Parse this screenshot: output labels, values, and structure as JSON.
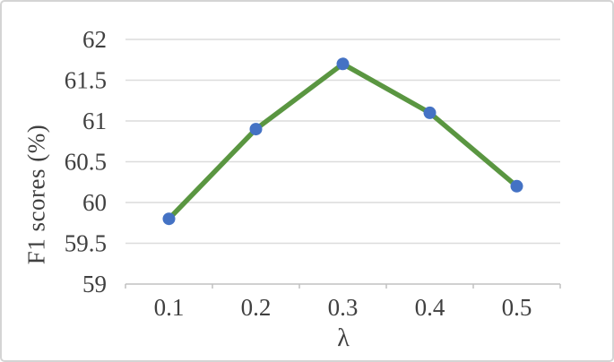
{
  "figure": {
    "border_color": "#d4d4d4",
    "background": "#ffffff"
  },
  "chart_data": {
    "type": "line",
    "title": "",
    "xlabel": "λ",
    "ylabel": "F1 scores (%)",
    "x_categories": [
      "0.1",
      "0.2",
      "0.3",
      "0.4",
      "0.5"
    ],
    "series": [
      {
        "name": "F1 scores",
        "values": [
          59.8,
          60.9,
          61.7,
          61.1,
          60.2
        ]
      }
    ],
    "yticks": [
      "59",
      "59.5",
      "60",
      "60.5",
      "61",
      "61.5",
      "62"
    ],
    "ylim": [
      59,
      62
    ],
    "grid": "horizontal",
    "legend": "none",
    "line_color": "#5a9641",
    "marker_color": "#4472c4",
    "grid_color": "#dcdcdc",
    "axis_color": "#c0c0c0",
    "text_color": "#404040"
  }
}
